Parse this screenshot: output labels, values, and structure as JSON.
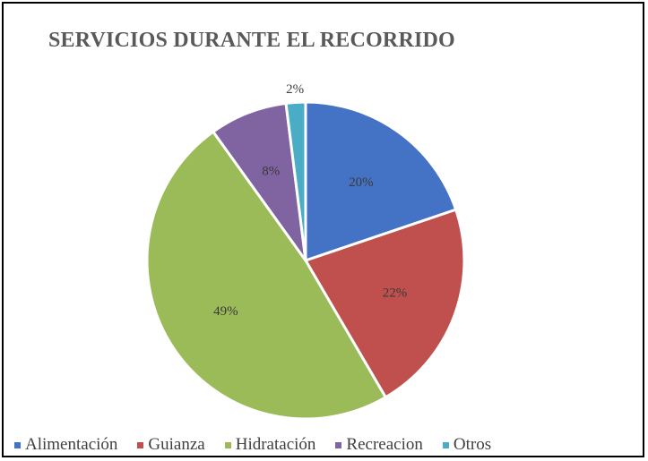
{
  "chart_data": {
    "type": "pie",
    "title": "SERVICIOS DURANTE EL RECORRIDO",
    "categories": [
      "Alimentación",
      "Guianza",
      "Hidratación",
      "Recreacion",
      "Otros"
    ],
    "values": [
      20,
      22,
      49,
      8,
      2
    ],
    "data_labels": [
      "20%",
      "22%",
      "49%",
      "8%",
      "2%"
    ],
    "colors": [
      "#4472C4",
      "#C0504D",
      "#9BBB59",
      "#8064A2",
      "#4BACC6"
    ],
    "legend_position": "bottom"
  }
}
